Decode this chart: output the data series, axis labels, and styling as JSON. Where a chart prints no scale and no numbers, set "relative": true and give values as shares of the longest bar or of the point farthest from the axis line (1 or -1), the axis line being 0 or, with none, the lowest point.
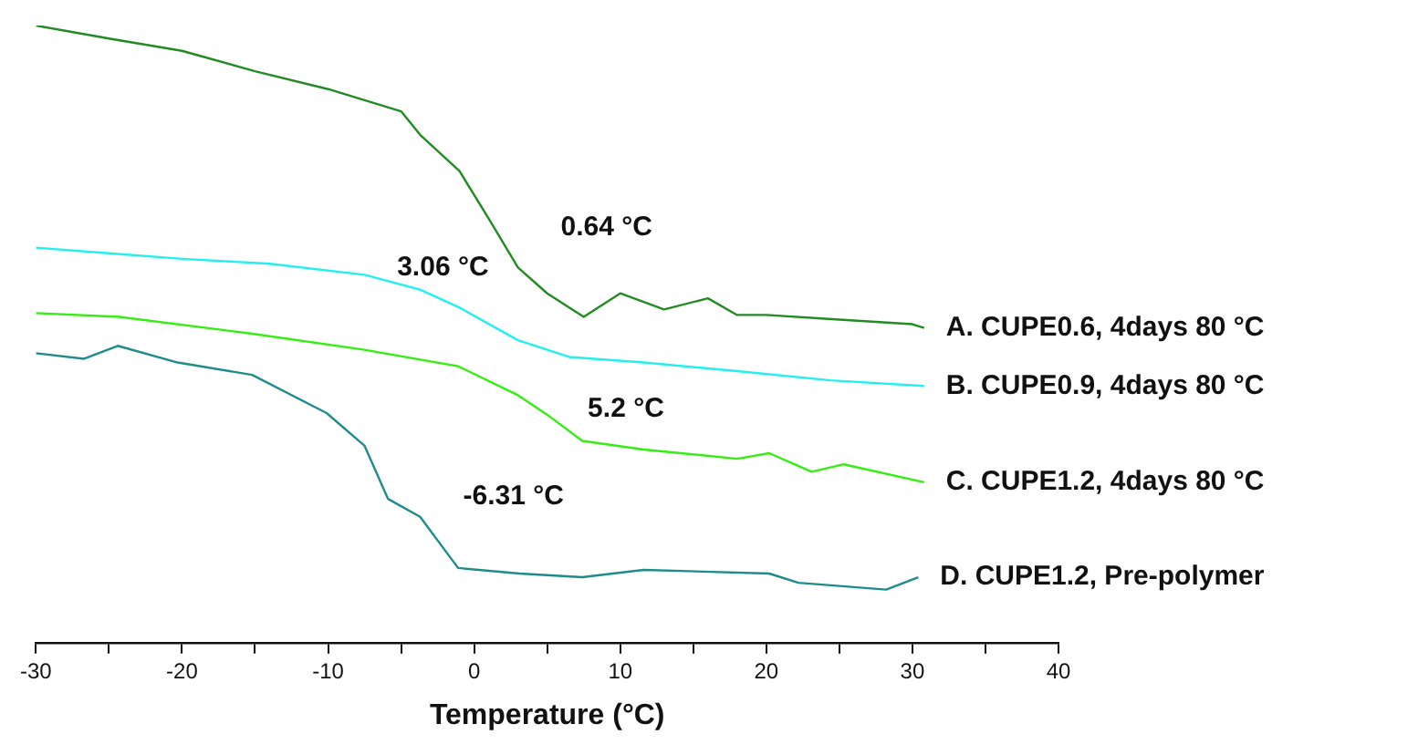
{
  "chart_data": {
    "type": "line",
    "relative": true,
    "xlabel": "Temperature (°C)",
    "xlim": [
      -30,
      40
    ],
    "xticks": [
      -30,
      {
        "value": -25,
        "label": null
      },
      -20,
      {
        "value": -15,
        "label": null
      },
      -10,
      {
        "value": -5,
        "label": null
      },
      0,
      {
        "value": 5,
        "label": null
      },
      10,
      {
        "value": 15,
        "label": null
      },
      20,
      {
        "value": 25,
        "label": null
      },
      30,
      {
        "value": 35,
        "label": null
      },
      40
    ],
    "grid": false,
    "legend": false,
    "marker": "none",
    "line_style": "solid",
    "series": [
      {
        "name": "A. CUPE0.6, 4days 80 °C",
        "color": "#228b22",
        "x": [
          -30,
          -25,
          -20,
          -15,
          -10,
          -5,
          -3.7,
          -1,
          1,
          3,
          5,
          7.5,
          10,
          13,
          16,
          18,
          20,
          24,
          28,
          30,
          30.8
        ],
        "values": [
          1.0,
          0.979,
          0.959,
          0.926,
          0.897,
          0.861,
          0.823,
          0.764,
          0.687,
          0.608,
          0.566,
          0.528,
          0.566,
          0.54,
          0.558,
          0.531,
          0.531,
          0.525,
          0.519,
          0.516,
          0.51
        ]
      },
      {
        "name": "B. CUPE0.9, 4days 80 °C",
        "color": "#22f0f0",
        "x": [
          -30,
          -25,
          -20,
          -14,
          -7.5,
          -3.7,
          -1,
          3,
          6.5,
          11.6,
          18,
          24.4,
          30.8
        ],
        "values": [
          0.64,
          0.631,
          0.622,
          0.614,
          0.596,
          0.572,
          0.543,
          0.49,
          0.463,
          0.454,
          0.44,
          0.425,
          0.416
        ]
      },
      {
        "name": "C. CUPE1.2, 4days 80 °C",
        "color": "#33ee11",
        "x": [
          -30,
          -24.3,
          -15.3,
          -7.6,
          -1.1,
          3,
          5.2,
          7.4,
          11.6,
          18,
          20.2,
          23.1,
          25.3,
          30.8
        ],
        "values": [
          0.534,
          0.528,
          0.501,
          0.475,
          0.448,
          0.401,
          0.366,
          0.327,
          0.313,
          0.298,
          0.307,
          0.277,
          0.289,
          0.26
        ]
      },
      {
        "name": "D. CUPE1.2, Pre-polymer",
        "color": "#1f8c8c",
        "x": [
          -30,
          -26.7,
          -24.4,
          -20.3,
          -15.2,
          -10.1,
          -7.5,
          -5.9,
          -3.7,
          -1.1,
          3.1,
          7.4,
          11.6,
          20.2,
          22.2,
          28.2,
          30.4
        ],
        "values": [
          0.469,
          0.46,
          0.481,
          0.454,
          0.434,
          0.372,
          0.319,
          0.233,
          0.204,
          0.121,
          0.112,
          0.106,
          0.118,
          0.112,
          0.097,
          0.086,
          0.106
        ]
      }
    ],
    "annotations": [
      "0.64 °C",
      "3.06 °C",
      "5.2 °C",
      "-6.31 °C"
    ]
  }
}
